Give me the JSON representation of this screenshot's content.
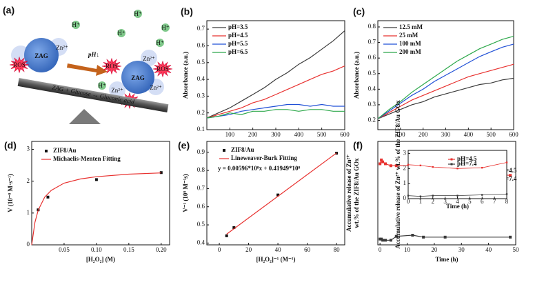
{
  "panel_a": {
    "panel": "(a)",
    "particle": "ZAG",
    "ros": "ROS",
    "zinc": "Zn²⁺",
    "ph": "pH↓",
    "proton": "H⁺",
    "reaction": "ZAG + Glucose → Gluconic acid"
  },
  "chart_data": [
    {
      "type": "line",
      "panel": "(b)",
      "x_label": "Time (s)",
      "y_label": "Absorbance (a.u.)",
      "x": [
        0,
        50,
        100,
        150,
        200,
        250,
        300,
        350,
        400,
        450,
        500,
        550,
        600
      ],
      "xlim": [
        0,
        600
      ],
      "ylim": [
        0.1,
        0.75
      ],
      "xticks": [
        100,
        200,
        300,
        400,
        500,
        600
      ],
      "yticks": [
        0.1,
        0.2,
        0.3,
        0.4,
        0.5,
        0.6,
        0.7
      ],
      "series": [
        {
          "name": "pH=3.5",
          "color": "#3a3a3a",
          "style": "line",
          "values": [
            0.17,
            0.2,
            0.23,
            0.27,
            0.31,
            0.35,
            0.4,
            0.44,
            0.49,
            0.53,
            0.58,
            0.63,
            0.69
          ]
        },
        {
          "name": "pH=4.5",
          "color": "#e8312f",
          "style": "line",
          "values": [
            0.17,
            0.19,
            0.21,
            0.23,
            0.26,
            0.28,
            0.31,
            0.34,
            0.37,
            0.4,
            0.43,
            0.45,
            0.48
          ]
        },
        {
          "name": "pH=5.5",
          "color": "#1f4fd6",
          "style": "line",
          "values": [
            0.17,
            0.18,
            0.19,
            0.21,
            0.22,
            0.23,
            0.24,
            0.25,
            0.25,
            0.24,
            0.25,
            0.24,
            0.24
          ]
        },
        {
          "name": "pH=6.5",
          "color": "#2ca84a",
          "style": "line",
          "values": [
            0.17,
            0.18,
            0.2,
            0.19,
            0.21,
            0.21,
            0.22,
            0.22,
            0.21,
            0.22,
            0.22,
            0.21,
            0.21
          ]
        }
      ]
    },
    {
      "type": "line",
      "panel": "(c)",
      "x_label": "Time (s)",
      "y_label": "Absorbance (a.u.)",
      "x": [
        0,
        50,
        100,
        150,
        200,
        250,
        300,
        350,
        400,
        450,
        500,
        550,
        600
      ],
      "xlim": [
        0,
        600
      ],
      "ylim": [
        0.14,
        0.84
      ],
      "xticks": [
        100,
        200,
        300,
        400,
        500,
        600
      ],
      "yticks": [
        0.2,
        0.3,
        0.4,
        0.5,
        0.6,
        0.7,
        0.8
      ],
      "series": [
        {
          "name": "12.5 mM",
          "color": "#3a3a3a",
          "style": "line",
          "values": [
            0.21,
            0.24,
            0.27,
            0.3,
            0.32,
            0.35,
            0.37,
            0.39,
            0.41,
            0.43,
            0.44,
            0.46,
            0.47
          ]
        },
        {
          "name": "25  mM",
          "color": "#e8312f",
          "style": "line",
          "values": [
            0.21,
            0.25,
            0.29,
            0.33,
            0.36,
            0.39,
            0.42,
            0.45,
            0.48,
            0.5,
            0.52,
            0.54,
            0.56
          ]
        },
        {
          "name": "100  mM",
          "color": "#1f4fd6",
          "style": "line",
          "values": [
            0.21,
            0.26,
            0.31,
            0.36,
            0.4,
            0.45,
            0.49,
            0.53,
            0.57,
            0.61,
            0.64,
            0.67,
            0.69
          ]
        },
        {
          "name": "200  mM",
          "color": "#2ca84a",
          "style": "line",
          "values": [
            0.21,
            0.27,
            0.32,
            0.38,
            0.43,
            0.48,
            0.53,
            0.58,
            0.62,
            0.66,
            0.69,
            0.72,
            0.74
          ]
        }
      ]
    },
    {
      "type": "scatter",
      "panel": "(d)",
      "x_label": "[H₂O₂] (M)",
      "y_label": "V (10⁻⁸ M·s⁻¹)",
      "xlim": [
        0,
        0.213
      ],
      "ylim": [
        0,
        3.25
      ],
      "xticks": [
        0.05,
        {
          "value": 0.1,
          "label": "0.10"
        },
        0.15,
        {
          "value": 0.2,
          "label": "0.20"
        }
      ],
      "yticks": [
        0,
        1,
        2,
        3
      ],
      "series": [
        {
          "name": "ZIF8/Au",
          "color": "#111111",
          "style": "markers",
          "x": [
            0.01,
            0.025,
            0.1,
            0.2
          ],
          "values": [
            1.1,
            1.5,
            2.05,
            2.27
          ]
        },
        {
          "name": "Michaelis-Menten Fitting",
          "color": "#e8312f",
          "style": "line",
          "x": [
            0,
            0.005,
            0.01,
            0.02,
            0.03,
            0.05,
            0.075,
            0.1,
            0.15,
            0.2
          ],
          "values": [
            0,
            0.71,
            1.09,
            1.5,
            1.71,
            1.94,
            2.07,
            2.14,
            2.22,
            2.26
          ]
        }
      ]
    },
    {
      "type": "scatter",
      "panel": "(e)",
      "x_label": "[H₂O₂]⁻¹ (M⁻¹)",
      "y_label": "V⁻¹ (10⁸ M⁻¹s)",
      "annotation": "y = 0.00596*10⁸x + 0.41949*10⁸",
      "xlim": [
        -8.5,
        85.6
      ],
      "ylim": [
        0.39,
        0.96
      ],
      "xticks": [
        0,
        20,
        40,
        60,
        80
      ],
      "yticks": [
        0.4,
        0.5,
        0.6,
        0.7,
        0.8,
        0.9
      ],
      "series": [
        {
          "name": "ZIF8/Au",
          "color": "#111111",
          "style": "markers",
          "x": [
            5,
            10,
            40,
            80
          ],
          "values": [
            0.44,
            0.485,
            0.665,
            0.895
          ]
        },
        {
          "name": "Lineweaver-Burk Fitting",
          "color": "#e8312f",
          "style": "line",
          "x": [
            5,
            80
          ],
          "values": [
            0.449,
            0.896
          ]
        }
      ]
    },
    {
      "type": "line",
      "panel": "(f)",
      "x_label": "Time (h)",
      "y_label": [
        "Accumulative release of Zn²⁺",
        "wt.% of the ZIF8/Au GOx"
      ],
      "xlim": [
        -0.8,
        50
      ],
      "ylim": [
        0,
        2.68
      ],
      "xticks": [
        0,
        10,
        20,
        30,
        40,
        50
      ],
      "series": [
        {
          "name": "pH=4.5",
          "color": "#e8312f",
          "style": "line-markers",
          "x": [
            0,
            0.5,
            1,
            2,
            4,
            6,
            12,
            16,
            24,
            48
          ],
          "values": [
            2.1,
            2.2,
            2.15,
            2.1,
            2.05,
            2.05,
            2.05,
            2.0,
            1.95,
            1.8
          ]
        },
        {
          "name": "pH=7.4",
          "color": "#3a3a3a",
          "style": "line-markers",
          "x": [
            0,
            0.5,
            1,
            2,
            4,
            6,
            12,
            16,
            24,
            48
          ],
          "values": [
            0.15,
            0.15,
            0.12,
            0.12,
            0.12,
            0.22,
            0.25,
            0.2,
            0.2,
            0.2
          ]
        }
      ]
    },
    {
      "type": "line",
      "x_label": "Time (h)",
      "y_label": "Accumulative release of Zn²⁺ wt.% of the ZIF8/Au GOx",
      "xlim": [
        0,
        8
      ],
      "ylim": [
        0,
        3.2
      ],
      "xticks": [
        0,
        1,
        2,
        3,
        4,
        5,
        6,
        7,
        8
      ],
      "yticks": [
        0,
        1,
        2,
        3
      ],
      "series": [
        {
          "name": "pH=4.5",
          "color": "#e8312f",
          "style": "line-markers",
          "x": [
            0,
            1,
            2,
            4,
            6,
            8
          ],
          "values": [
            2.25,
            2.2,
            2.1,
            2.0,
            2.05,
            2.4
          ]
        },
        {
          "name": "pH=7.4",
          "color": "#3a3a3a",
          "style": "line-markers",
          "x": [
            0,
            1,
            2,
            4,
            6,
            8
          ],
          "values": [
            0.2,
            0.15,
            0.2,
            0.2,
            0.25,
            0.3
          ]
        }
      ]
    }
  ]
}
